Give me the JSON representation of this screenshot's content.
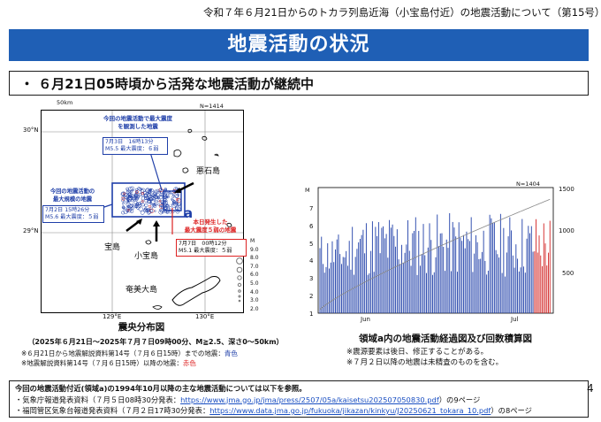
{
  "header": {
    "title": "令和７年６月21日からのトカラ列島近海（小宝島付近）の地震活動について（第15号）",
    "banner": "地震活動の状況",
    "bullet": "・ ６月21日05時頃から活発な地震活動が継続中"
  },
  "map": {
    "scale_label": "50km",
    "count": "N=1414",
    "lat_30": "30°N",
    "lat_29": "29°N",
    "lon_129": "129°E",
    "lon_130": "130°E",
    "place_akuseki": "悪石島",
    "place_takara": "宝島",
    "place_kodakara": "小宝島",
    "place_amami": "奄美大島",
    "region_label": "a",
    "m_axis": {
      "label": "M",
      "ticks": [
        "9.0",
        "8.0",
        "7.0",
        "6.0",
        "5.0",
        "4.0",
        "3.0",
        "2.0"
      ]
    },
    "callout_top": {
      "heading1": "今回の地震活動で最大震度",
      "heading2": "を観測した地震",
      "line1": "7月3日　16時13分",
      "line2": "M5.5 最大震度：６弱"
    },
    "callout_left": {
      "heading1": "今回の地震活動の",
      "heading2": "最大規模の地震",
      "line1": "7月2日 15時26分",
      "line2": "M5.6 最大震度：５弱"
    },
    "callout_red": {
      "heading1": "本日発生した",
      "heading2": "最大震度５弱の地震",
      "line1": "7月7日　00時12分",
      "line2": "M5.1 最大震度：５弱"
    },
    "caption": "震央分布図",
    "caption_sub": "（2025年６月21日～2025年７月７日09時00分、M≧2.5、深さ0～50km）",
    "note1_pre": "※６月21日から地震解説資料第14号（７月６日15時）までの地震：",
    "note1_color": "青色",
    "note2_pre": "※地震解説資料第14号（７月６日15時）以降の地震：",
    "note2_color": "赤色"
  },
  "chart_data": {
    "type": "bar",
    "count": "N=1404",
    "left_axis": {
      "label": "M",
      "range": [
        0,
        7
      ],
      "ticks": [
        "7",
        "6",
        "5",
        "4",
        "3",
        "2",
        "1",
        "0"
      ]
    },
    "right_axis": {
      "range": [
        0,
        1500
      ],
      "ticks": [
        "1500",
        "1000",
        "500"
      ]
    },
    "x_labels": [
      "Jun",
      "Jul"
    ],
    "cumulative_final": 1404
  },
  "chart_caption": "領域a内の地震活動経過図及び回数積算図",
  "chart_notes": [
    "※震源要素は後日、修正することがある。",
    "※７月２日以降の地震は未精査のものを含む。"
  ],
  "footer": {
    "line1": "今回の地震活動付近(領域a)の1994年10月以降の主な地震活動については以下を参照。",
    "line2_pre": "・気象庁報道発表資料（７月５日08時30分発表：",
    "line2_link": "https://www.jma.go.jp/jma/press/2507/05a/kaisetsu202507050830.pdf",
    "line2_post": "）の9ページ",
    "line3_pre": "・福岡管区気象台報道発表資料（７月２日17時30分発表：",
    "line3_link": "https://www.data.jma.go.jp/fukuoka/jikazan/kinkyu/J20250621_tokara_10.pdf",
    "line3_post": "）の8ページ"
  },
  "page_number": "4",
  "colors": {
    "banner": "#1f5fb5",
    "blue": "#1e3ea8",
    "red": "#d22222"
  }
}
